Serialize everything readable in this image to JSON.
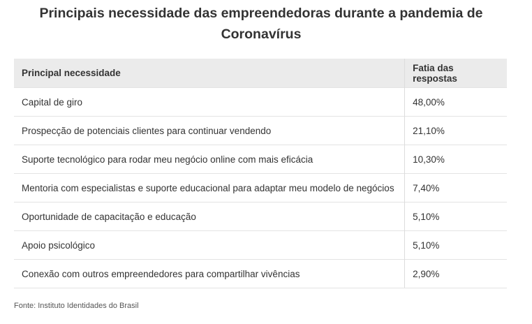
{
  "title": {
    "line1": "Principais necessidade das empreendedoras durante a pandemia de",
    "line2": "Coronavírus"
  },
  "table": {
    "headers": [
      "Principal necessidade",
      "Fatia das respostas"
    ],
    "rows": [
      {
        "need": "Capital de giro",
        "share": "48,00%"
      },
      {
        "need": "Prospecção de potenciais clientes para continuar vendendo",
        "share": "21,10%"
      },
      {
        "need": "Suporte tecnológico para rodar meu negócio online com mais eficácia",
        "share": "10,30%"
      },
      {
        "need": "Mentoria com especialistas e suporte educacional para adaptar meu modelo de negócios",
        "share": "7,40%"
      },
      {
        "need": "Oportunidade de capacitação e educação",
        "share": "5,10%"
      },
      {
        "need": "Apoio psicológico",
        "share": "5,10%"
      },
      {
        "need": "Conexão com outros empreendedores para compartilhar vivências",
        "share": "2,90%"
      }
    ]
  },
  "source": "Fonte: Instituto Identidades do Brasil"
}
